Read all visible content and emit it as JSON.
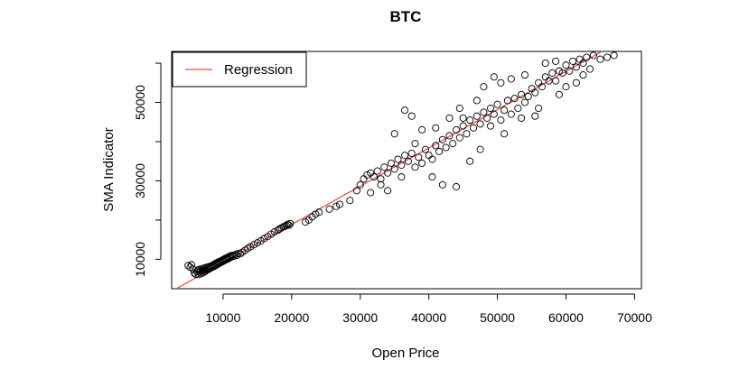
{
  "chart_data": {
    "type": "scatter",
    "title": "BTC",
    "xlabel": "Open Price",
    "ylabel": "SMA Indicator",
    "xlim": [
      2500,
      71000
    ],
    "ylim": [
      2500,
      63000
    ],
    "xticks": [
      10000,
      20000,
      30000,
      40000,
      50000,
      60000,
      70000
    ],
    "yticks": [
      10000,
      20000,
      30000,
      40000,
      50000,
      60000
    ],
    "ytick_labels_shown": [
      10000,
      30000,
      50000
    ],
    "grid": false,
    "legend": {
      "position": "top-left",
      "entries": [
        {
          "label": "Regression",
          "color": "#e8473f",
          "style": "line"
        }
      ]
    },
    "colors": {
      "points": "#000000",
      "regression": "#e8473f"
    },
    "regression": {
      "intercept": -600,
      "slope": 0.975
    },
    "series": [
      {
        "name": "",
        "points": [
          [
            4900,
            8400
          ],
          [
            5200,
            8000
          ],
          [
            5400,
            8600
          ],
          [
            5600,
            7500
          ],
          [
            5800,
            6500
          ],
          [
            6000,
            6200
          ],
          [
            6200,
            6900
          ],
          [
            6300,
            7200
          ],
          [
            6400,
            6100
          ],
          [
            6500,
            7400
          ],
          [
            6600,
            6700
          ],
          [
            6700,
            7100
          ],
          [
            6800,
            6300
          ],
          [
            6900,
            7600
          ],
          [
            7000,
            7000
          ],
          [
            7100,
            6600
          ],
          [
            7200,
            7300
          ],
          [
            7300,
            7800
          ],
          [
            7400,
            6900
          ],
          [
            7500,
            7500
          ],
          [
            7600,
            7200
          ],
          [
            7700,
            8000
          ],
          [
            7800,
            7400
          ],
          [
            7900,
            7900
          ],
          [
            8000,
            7600
          ],
          [
            8100,
            8200
          ],
          [
            8200,
            7800
          ],
          [
            8300,
            8300
          ],
          [
            8400,
            8000
          ],
          [
            8500,
            8500
          ],
          [
            8600,
            8100
          ],
          [
            8700,
            8700
          ],
          [
            8800,
            8300
          ],
          [
            8900,
            8900
          ],
          [
            9000,
            8500
          ],
          [
            9100,
            9100
          ],
          [
            9200,
            8700
          ],
          [
            9300,
            9300
          ],
          [
            9400,
            8900
          ],
          [
            9500,
            9400
          ],
          [
            9600,
            9100
          ],
          [
            9700,
            9600
          ],
          [
            9800,
            9300
          ],
          [
            9900,
            9800
          ],
          [
            10000,
            9500
          ],
          [
            10100,
            10000
          ],
          [
            10200,
            9700
          ],
          [
            10300,
            10200
          ],
          [
            10400,
            9900
          ],
          [
            10500,
            10300
          ],
          [
            10600,
            10000
          ],
          [
            10700,
            10500
          ],
          [
            10800,
            10200
          ],
          [
            10900,
            10700
          ],
          [
            11000,
            10400
          ],
          [
            11100,
            10900
          ],
          [
            11200,
            10600
          ],
          [
            11400,
            11000
          ],
          [
            11600,
            10800
          ],
          [
            11800,
            11200
          ],
          [
            12000,
            11000
          ],
          [
            12200,
            11500
          ],
          [
            12500,
            11400
          ],
          [
            12800,
            11800
          ],
          [
            13200,
            12300
          ],
          [
            13600,
            12800
          ],
          [
            14000,
            13200
          ],
          [
            14500,
            13700
          ],
          [
            15000,
            14200
          ],
          [
            15500,
            14700
          ],
          [
            16000,
            15300
          ],
          [
            16500,
            15800
          ],
          [
            17000,
            16400
          ],
          [
            17500,
            17000
          ],
          [
            18000,
            17400
          ],
          [
            18200,
            17700
          ],
          [
            18500,
            18000
          ],
          [
            18800,
            18300
          ],
          [
            19000,
            18400
          ],
          [
            19200,
            18600
          ],
          [
            19400,
            18900
          ],
          [
            19600,
            18700
          ],
          [
            19800,
            19100
          ],
          [
            22000,
            19500
          ],
          [
            22500,
            20000
          ],
          [
            23000,
            20800
          ],
          [
            23500,
            21500
          ],
          [
            24000,
            22000
          ],
          [
            25500,
            22800
          ],
          [
            26500,
            23500
          ],
          [
            27000,
            24000
          ],
          [
            28500,
            25000
          ],
          [
            29500,
            27500
          ],
          [
            30000,
            29000
          ],
          [
            30500,
            30500
          ],
          [
            31000,
            31500
          ],
          [
            31500,
            32000
          ],
          [
            32000,
            31000
          ],
          [
            32500,
            32500
          ],
          [
            33000,
            30500
          ],
          [
            33500,
            33500
          ],
          [
            34000,
            32000
          ],
          [
            34500,
            34500
          ],
          [
            35000,
            33000
          ],
          [
            35500,
            35500
          ],
          [
            36000,
            34000
          ],
          [
            36500,
            36500
          ],
          [
            37000,
            35000
          ],
          [
            37500,
            37000
          ],
          [
            38000,
            33500
          ],
          [
            38500,
            36000
          ],
          [
            39000,
            34500
          ],
          [
            39500,
            38000
          ],
          [
            40000,
            36500
          ],
          [
            40500,
            35500
          ],
          [
            41000,
            39000
          ],
          [
            41500,
            37500
          ],
          [
            42000,
            40500
          ],
          [
            42500,
            38500
          ],
          [
            43000,
            41500
          ],
          [
            43500,
            39500
          ],
          [
            44000,
            43000
          ],
          [
            44500,
            41000
          ],
          [
            45000,
            44000
          ],
          [
            45500,
            42000
          ],
          [
            46000,
            45500
          ],
          [
            46500,
            43500
          ],
          [
            47000,
            46500
          ],
          [
            47500,
            44500
          ],
          [
            48000,
            47500
          ],
          [
            48500,
            46000
          ],
          [
            49000,
            48500
          ],
          [
            49500,
            47000
          ],
          [
            50000,
            49500
          ],
          [
            50500,
            45500
          ],
          [
            51000,
            48000
          ],
          [
            51500,
            50500
          ],
          [
            52000,
            47000
          ],
          [
            52500,
            51000
          ],
          [
            53000,
            48500
          ],
          [
            53500,
            52000
          ],
          [
            54000,
            50000
          ],
          [
            54500,
            51500
          ],
          [
            55000,
            53500
          ],
          [
            55500,
            52500
          ],
          [
            56000,
            55000
          ],
          [
            56500,
            54000
          ],
          [
            57000,
            56500
          ],
          [
            57500,
            55500
          ],
          [
            58000,
            57500
          ],
          [
            58500,
            55500
          ],
          [
            59000,
            58000
          ],
          [
            59500,
            57500
          ],
          [
            60000,
            59500
          ],
          [
            60500,
            58000
          ],
          [
            61000,
            60500
          ],
          [
            61500,
            59000
          ],
          [
            62000,
            61000
          ],
          [
            62500,
            60000
          ],
          [
            63000,
            61500
          ],
          [
            64000,
            62000
          ],
          [
            65000,
            61000
          ],
          [
            66000,
            61500
          ],
          [
            67000,
            62000
          ],
          [
            36500,
            48000
          ],
          [
            37500,
            46500
          ],
          [
            35000,
            42000
          ],
          [
            42000,
            29000
          ],
          [
            40500,
            31000
          ],
          [
            44000,
            28500
          ],
          [
            46000,
            35000
          ],
          [
            47500,
            38000
          ],
          [
            55500,
            46500
          ],
          [
            56000,
            48500
          ],
          [
            52000,
            56000
          ],
          [
            54000,
            57000
          ],
          [
            57000,
            60000
          ],
          [
            58500,
            60500
          ],
          [
            45000,
            46000
          ],
          [
            38000,
            39500
          ],
          [
            34000,
            27500
          ],
          [
            33000,
            29000
          ],
          [
            31500,
            27000
          ],
          [
            36000,
            31000
          ],
          [
            49000,
            44000
          ],
          [
            51000,
            42000
          ],
          [
            53500,
            46000
          ],
          [
            59000,
            52000
          ],
          [
            60000,
            54000
          ],
          [
            61500,
            55000
          ],
          [
            62500,
            57000
          ],
          [
            63500,
            58500
          ],
          [
            48000,
            54000
          ],
          [
            49500,
            56500
          ],
          [
            50500,
            55000
          ],
          [
            43000,
            46000
          ],
          [
            41000,
            43500
          ],
          [
            39000,
            43000
          ],
          [
            47000,
            50500
          ],
          [
            44500,
            48500
          ]
        ]
      }
    ]
  }
}
